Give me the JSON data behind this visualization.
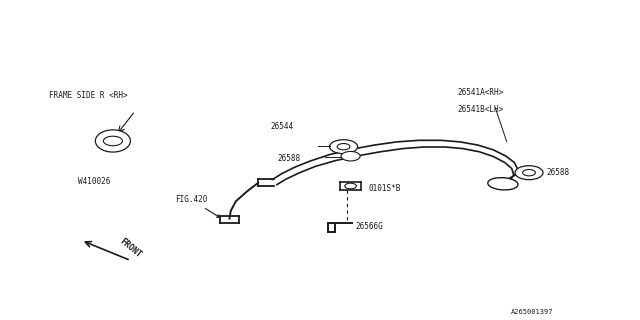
{
  "bg_color": "#ffffff",
  "line_color": "#1a1a1a",
  "text_color": "#1a1a1a",
  "fig_width": 6.4,
  "fig_height": 3.2,
  "dpi": 100,
  "part_number_code": "A265001397",
  "labels": {
    "frame_side": "FRAME SIDE R <RH>",
    "w410026": "W410026",
    "fig420": "FIG.420",
    "front": "FRONT",
    "part_26541a": "26541A<RH>",
    "part_26541b": "26541B<LH>",
    "part_26544": "26544",
    "part_26588_left": "26588",
    "part_26588_right": "26588",
    "part_0101sb": "0101S*B",
    "part_26566g": "26566G"
  }
}
